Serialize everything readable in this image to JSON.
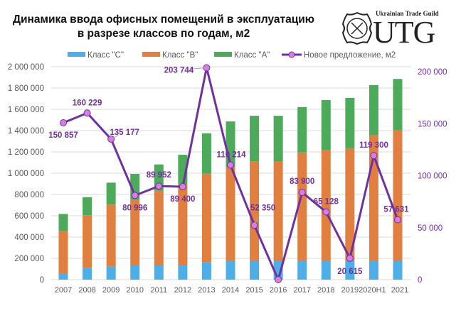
{
  "chart_data": {
    "type": "bar",
    "stacked": true,
    "title": "Динамика ввода офисных помещений в эксплуатацию в разрезе классов по годам, м2",
    "title_lines": [
      "Динамика ввода офисных помещений в эксплуатацию",
      "в разрезе классов по годам, м2"
    ],
    "categories": [
      "2007",
      "2008",
      "2009",
      "2010",
      "2011",
      "2012",
      "2013",
      "2014",
      "2015",
      "2016",
      "2017",
      "2018",
      "2019",
      "2020H1",
      "2021"
    ],
    "series": [
      {
        "name": "Класс \"C\"",
        "type": "bar",
        "axis": "left",
        "color": "#4eaee8",
        "values": [
          60000,
          111000,
          126000,
          133000,
          133000,
          133000,
          164000,
          180000,
          180000,
          180000,
          180000,
          180000,
          180000,
          180000,
          180000
        ]
      },
      {
        "name": "Класс \"B\"",
        "type": "bar",
        "axis": "left",
        "color": "#e07f3f",
        "values": [
          395000,
          494000,
          579000,
          616000,
          703000,
          761000,
          832000,
          880000,
          933000,
          933000,
          1015000,
          1037000,
          1055000,
          1177000,
          1224000
        ]
      },
      {
        "name": "Класс \"A\"",
        "type": "bar",
        "axis": "left",
        "color": "#4caa5a",
        "values": [
          162000,
          169000,
          206000,
          244000,
          246000,
          279000,
          379000,
          426000,
          426000,
          426000,
          426000,
          470000,
          472000,
          470000,
          481000
        ]
      },
      {
        "name": "Новое предложение, м2",
        "type": "line",
        "axis": "right",
        "color": "#7030a0",
        "marker_color": "#d77fe0",
        "values": [
          150857,
          160229,
          135177,
          80996,
          89952,
          89400,
          203744,
          110214,
          52350,
          0,
          83900,
          65128,
          20615,
          119300,
          57631
        ],
        "labels": [
          "150 857",
          "160 229",
          "135 177",
          "80 996",
          "89 952",
          "89 400",
          "203 744",
          "110 214",
          "52 350",
          "",
          "83 900",
          "65 128",
          "20 615",
          "119 300",
          "57 631"
        ]
      }
    ],
    "y_left": {
      "range": [
        0,
        2000000
      ],
      "ticks": [
        "0",
        "200 000",
        "400 000",
        "600 000",
        "800 000",
        "1 000 000",
        "1 200 000",
        "1 400 000",
        "1 600 000",
        "1 800 000",
        "2 000 000"
      ]
    },
    "y_right": {
      "range": [
        0,
        200000
      ],
      "ticks": [
        "0",
        "50 000",
        "100 000",
        "150 000",
        "200 000"
      ],
      "color": "#7030a0"
    },
    "grid": true,
    "legend": "top"
  },
  "logo": {
    "small": "Ukrainian Trade Guild",
    "big": "UTG"
  }
}
